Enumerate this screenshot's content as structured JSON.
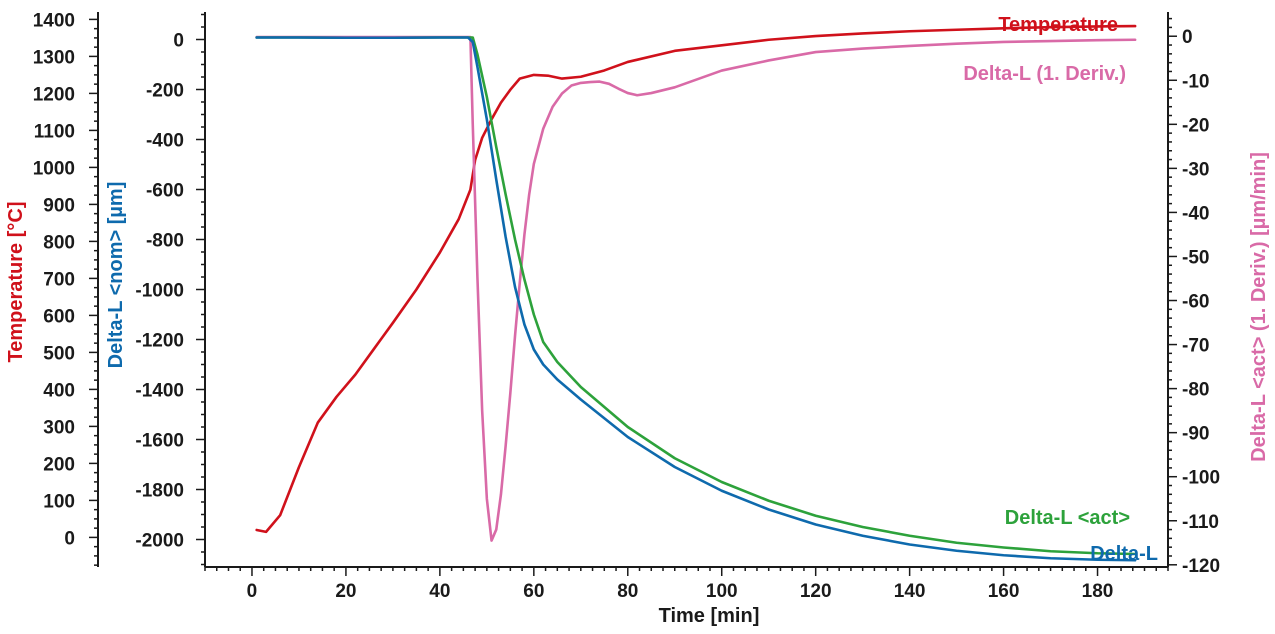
{
  "chart_data": {
    "type": "line",
    "title": "",
    "xlabel": "Time [min]",
    "xlim": [
      -10,
      195
    ],
    "x_ticks": [
      0,
      20,
      40,
      60,
      80,
      100,
      120,
      140,
      160,
      180
    ],
    "axes": [
      {
        "id": "temp",
        "label": "Temperature [°C]",
        "color": "#d0111b",
        "lim": [
          -80,
          1420
        ],
        "ticks": [
          0,
          100,
          200,
          300,
          400,
          500,
          600,
          700,
          800,
          900,
          1000,
          1100,
          1200,
          1300,
          1400
        ]
      },
      {
        "id": "nom",
        "label": "Delta-L <nom> [µm]",
        "color": "#0e6aad",
        "lim": [
          -2110,
          110
        ],
        "ticks": [
          0,
          -200,
          -400,
          -600,
          -800,
          -1000,
          -1200,
          -1400,
          -1600,
          -1800,
          -2000
        ]
      },
      {
        "id": "deriv",
        "label": "Delta-L <act> (1. Deriv.) [µm/min]",
        "color": "#d96aa7",
        "lim": [
          -120.5,
          5.5
        ],
        "ticks": [
          0,
          -10,
          -20,
          -30,
          -40,
          -50,
          -60,
          -70,
          -80,
          -90,
          -100,
          -110,
          -120
        ]
      }
    ],
    "series": [
      {
        "name": "Temperature",
        "axis": "temp",
        "color": "#d0111b",
        "label_at": "end-top",
        "x": [
          1,
          3,
          6,
          10,
          14,
          18,
          22,
          26,
          30,
          35,
          40,
          44,
          46.5,
          47.5,
          49,
          51,
          53,
          55,
          57,
          60,
          63,
          66,
          70,
          75,
          80,
          90,
          100,
          110,
          120,
          130,
          140,
          150,
          160,
          170,
          180,
          188
        ],
        "y": [
          20,
          15,
          60,
          190,
          310,
          380,
          440,
          510,
          580,
          670,
          770,
          860,
          940,
          1020,
          1080,
          1130,
          1175,
          1210,
          1240,
          1250,
          1248,
          1240,
          1245,
          1262,
          1285,
          1315,
          1330,
          1345,
          1355,
          1362,
          1368,
          1372,
          1376,
          1379,
          1381,
          1382
        ]
      },
      {
        "name": "Delta-L (1. Deriv.)",
        "axis": "deriv",
        "color": "#d96aa7",
        "label_at": "end-upper",
        "x": [
          1,
          10,
          20,
          30,
          40,
          46.5,
          47,
          48,
          49,
          50,
          51,
          52,
          53,
          54,
          55,
          56,
          57,
          58,
          59,
          60,
          62,
          64,
          66,
          68,
          70,
          72,
          74,
          76,
          78,
          80,
          82,
          85,
          90,
          95,
          100,
          110,
          120,
          130,
          140,
          150,
          160,
          170,
          180,
          188
        ],
        "y": [
          -0.2,
          -0.2,
          -0.2,
          -0.2,
          -0.2,
          -0.2,
          -20,
          -55,
          -85,
          -105,
          -114.5,
          -112,
          -104,
          -93,
          -81,
          -68,
          -56,
          -45,
          -36,
          -29,
          -21,
          -16,
          -13,
          -11.2,
          -10.6,
          -10.4,
          -10.3,
          -10.8,
          -11.9,
          -12.9,
          -13.4,
          -12.9,
          -11.6,
          -9.7,
          -7.8,
          -5.5,
          -3.6,
          -2.8,
          -2.2,
          -1.7,
          -1.3,
          -1.1,
          -0.9,
          -0.8
        ]
      },
      {
        "name": "Delta-L <act>",
        "axis": "nom",
        "color": "#2da23b",
        "label_at": "end-lower",
        "x": [
          1,
          10,
          20,
          30,
          40,
          46,
          47,
          48,
          50,
          52,
          54,
          56,
          58,
          60,
          62,
          65,
          70,
          80,
          90,
          100,
          110,
          120,
          130,
          140,
          150,
          160,
          170,
          180,
          188
        ],
        "y": [
          8,
          8,
          7,
          7,
          8,
          8,
          8,
          -60,
          -230,
          -430,
          -620,
          -800,
          -960,
          -1100,
          -1210,
          -1290,
          -1390,
          -1550,
          -1675,
          -1770,
          -1845,
          -1905,
          -1950,
          -1985,
          -2013,
          -2032,
          -2047,
          -2055,
          -2058
        ]
      },
      {
        "name": "Delta-L",
        "axis": "nom",
        "color": "#0e6aad",
        "label_at": "end-bottom",
        "x": [
          1,
          10,
          20,
          30,
          40,
          46,
          47,
          48,
          50,
          52,
          54,
          56,
          58,
          60,
          62,
          65,
          70,
          80,
          90,
          100,
          110,
          120,
          130,
          140,
          150,
          160,
          170,
          180,
          188
        ],
        "y": [
          8,
          8,
          7,
          7,
          8,
          8,
          -10,
          -110,
          -320,
          -560,
          -790,
          -990,
          -1140,
          -1240,
          -1300,
          -1360,
          -1440,
          -1590,
          -1710,
          -1805,
          -1880,
          -1940,
          -1985,
          -2020,
          -2045,
          -2063,
          -2075,
          -2081,
          -2083
        ]
      }
    ]
  }
}
